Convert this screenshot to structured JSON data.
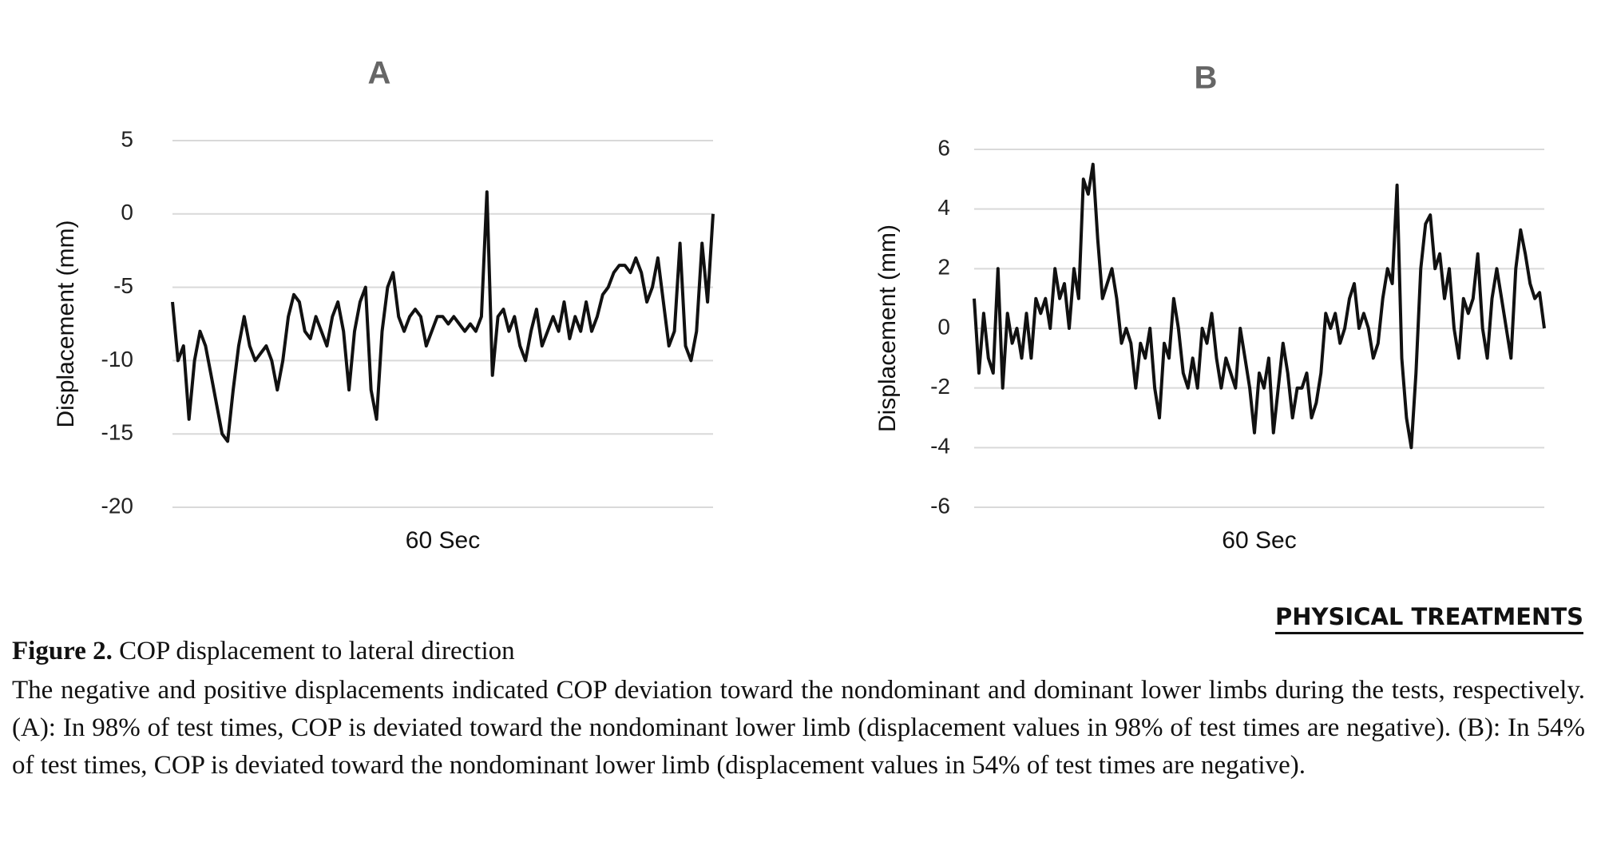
{
  "chart_data": [
    {
      "type": "line",
      "title": "A",
      "ylabel": "Displacement (mm)",
      "xlabel": "60 Sec",
      "color": "#111111",
      "ylim": [
        -20,
        5
      ],
      "yticks": [
        5,
        0,
        -5,
        -10,
        -15,
        -20
      ],
      "grid": true,
      "values": [
        -6,
        -10,
        -9,
        -14,
        -10,
        -8,
        -9,
        -11,
        -13,
        -15,
        -15.5,
        -12,
        -9,
        -7,
        -9,
        -10,
        -9.5,
        -9,
        -10,
        -12,
        -10,
        -7,
        -5.5,
        -6,
        -8,
        -8.5,
        -7,
        -8,
        -9,
        -7,
        -6,
        -8,
        -12,
        -8,
        -6,
        -5,
        -12,
        -14,
        -8,
        -5,
        -4,
        -7,
        -8,
        -7,
        -6.5,
        -7,
        -9,
        -8,
        -7,
        -7,
        -7.5,
        -7,
        -7.5,
        -8,
        -7.5,
        -8,
        -7,
        1.5,
        -11,
        -7,
        -6.5,
        -8,
        -7,
        -9,
        -10,
        -8,
        -6.5,
        -9,
        -8,
        -7,
        -8,
        -6,
        -8.5,
        -7,
        -8,
        -6,
        -8,
        -7,
        -5.5,
        -5,
        -4,
        -3.5,
        -3.5,
        -4,
        -3,
        -4,
        -6,
        -5,
        -3,
        -6,
        -9,
        -8,
        -2,
        -9,
        -10,
        -8,
        -2,
        -6,
        0
      ]
    },
    {
      "type": "line",
      "title": "B",
      "ylabel": "Displacement (mm)",
      "xlabel": "60 Sec",
      "color": "#111111",
      "ylim": [
        -6,
        6
      ],
      "yticks": [
        6,
        4,
        2,
        0,
        -2,
        -4,
        -6
      ],
      "grid": true,
      "values": [
        1,
        -1.5,
        0.5,
        -1,
        -1.5,
        2,
        -2,
        0.5,
        -0.5,
        0,
        -1,
        0.5,
        -1,
        1,
        0.5,
        1,
        0,
        2,
        1,
        1.5,
        0,
        2,
        1,
        5,
        4.5,
        5.5,
        3,
        1,
        1.5,
        2,
        1,
        -0.5,
        0,
        -0.5,
        -2,
        -0.5,
        -1,
        0,
        -2,
        -3,
        -0.5,
        -1,
        1,
        0,
        -1.5,
        -2,
        -1,
        -2,
        0,
        -0.5,
        0.5,
        -1,
        -2,
        -1,
        -1.5,
        -2,
        0,
        -1,
        -2,
        -3.5,
        -1.5,
        -2,
        -1,
        -3.5,
        -2,
        -0.5,
        -1.5,
        -3,
        -2,
        -2,
        -1.5,
        -3,
        -2.5,
        -1.5,
        0.5,
        0,
        0.5,
        -0.5,
        0,
        1,
        1.5,
        0,
        0.5,
        0,
        -1,
        -0.5,
        1,
        2,
        1.5,
        4.8,
        -1,
        -3,
        -4,
        -1.5,
        2,
        3.5,
        3.8,
        2,
        2.5,
        1,
        2,
        0,
        -1,
        1,
        0.5,
        1,
        2.5,
        0,
        -1,
        1,
        2,
        1,
        0,
        -1,
        2,
        3.3,
        2.5,
        1.5,
        1,
        1.2,
        0
      ]
    }
  ],
  "logo": "PHYSICAL TREATMENTS",
  "caption": {
    "label": "Figure 2.",
    "title": "COP displacement to lateral direction",
    "text": "The negative and positive displacements indicated COP deviation toward the nondominant and dominant lower limbs during the tests, respectively. (A): In 98% of test times, COP is deviated toward the nondominant lower limb (displacement values in 98% of test times are negative). (B): In 54% of test times, COP is deviated toward the nondominant lower limb (displacement values in 54% of test times are negative)."
  }
}
